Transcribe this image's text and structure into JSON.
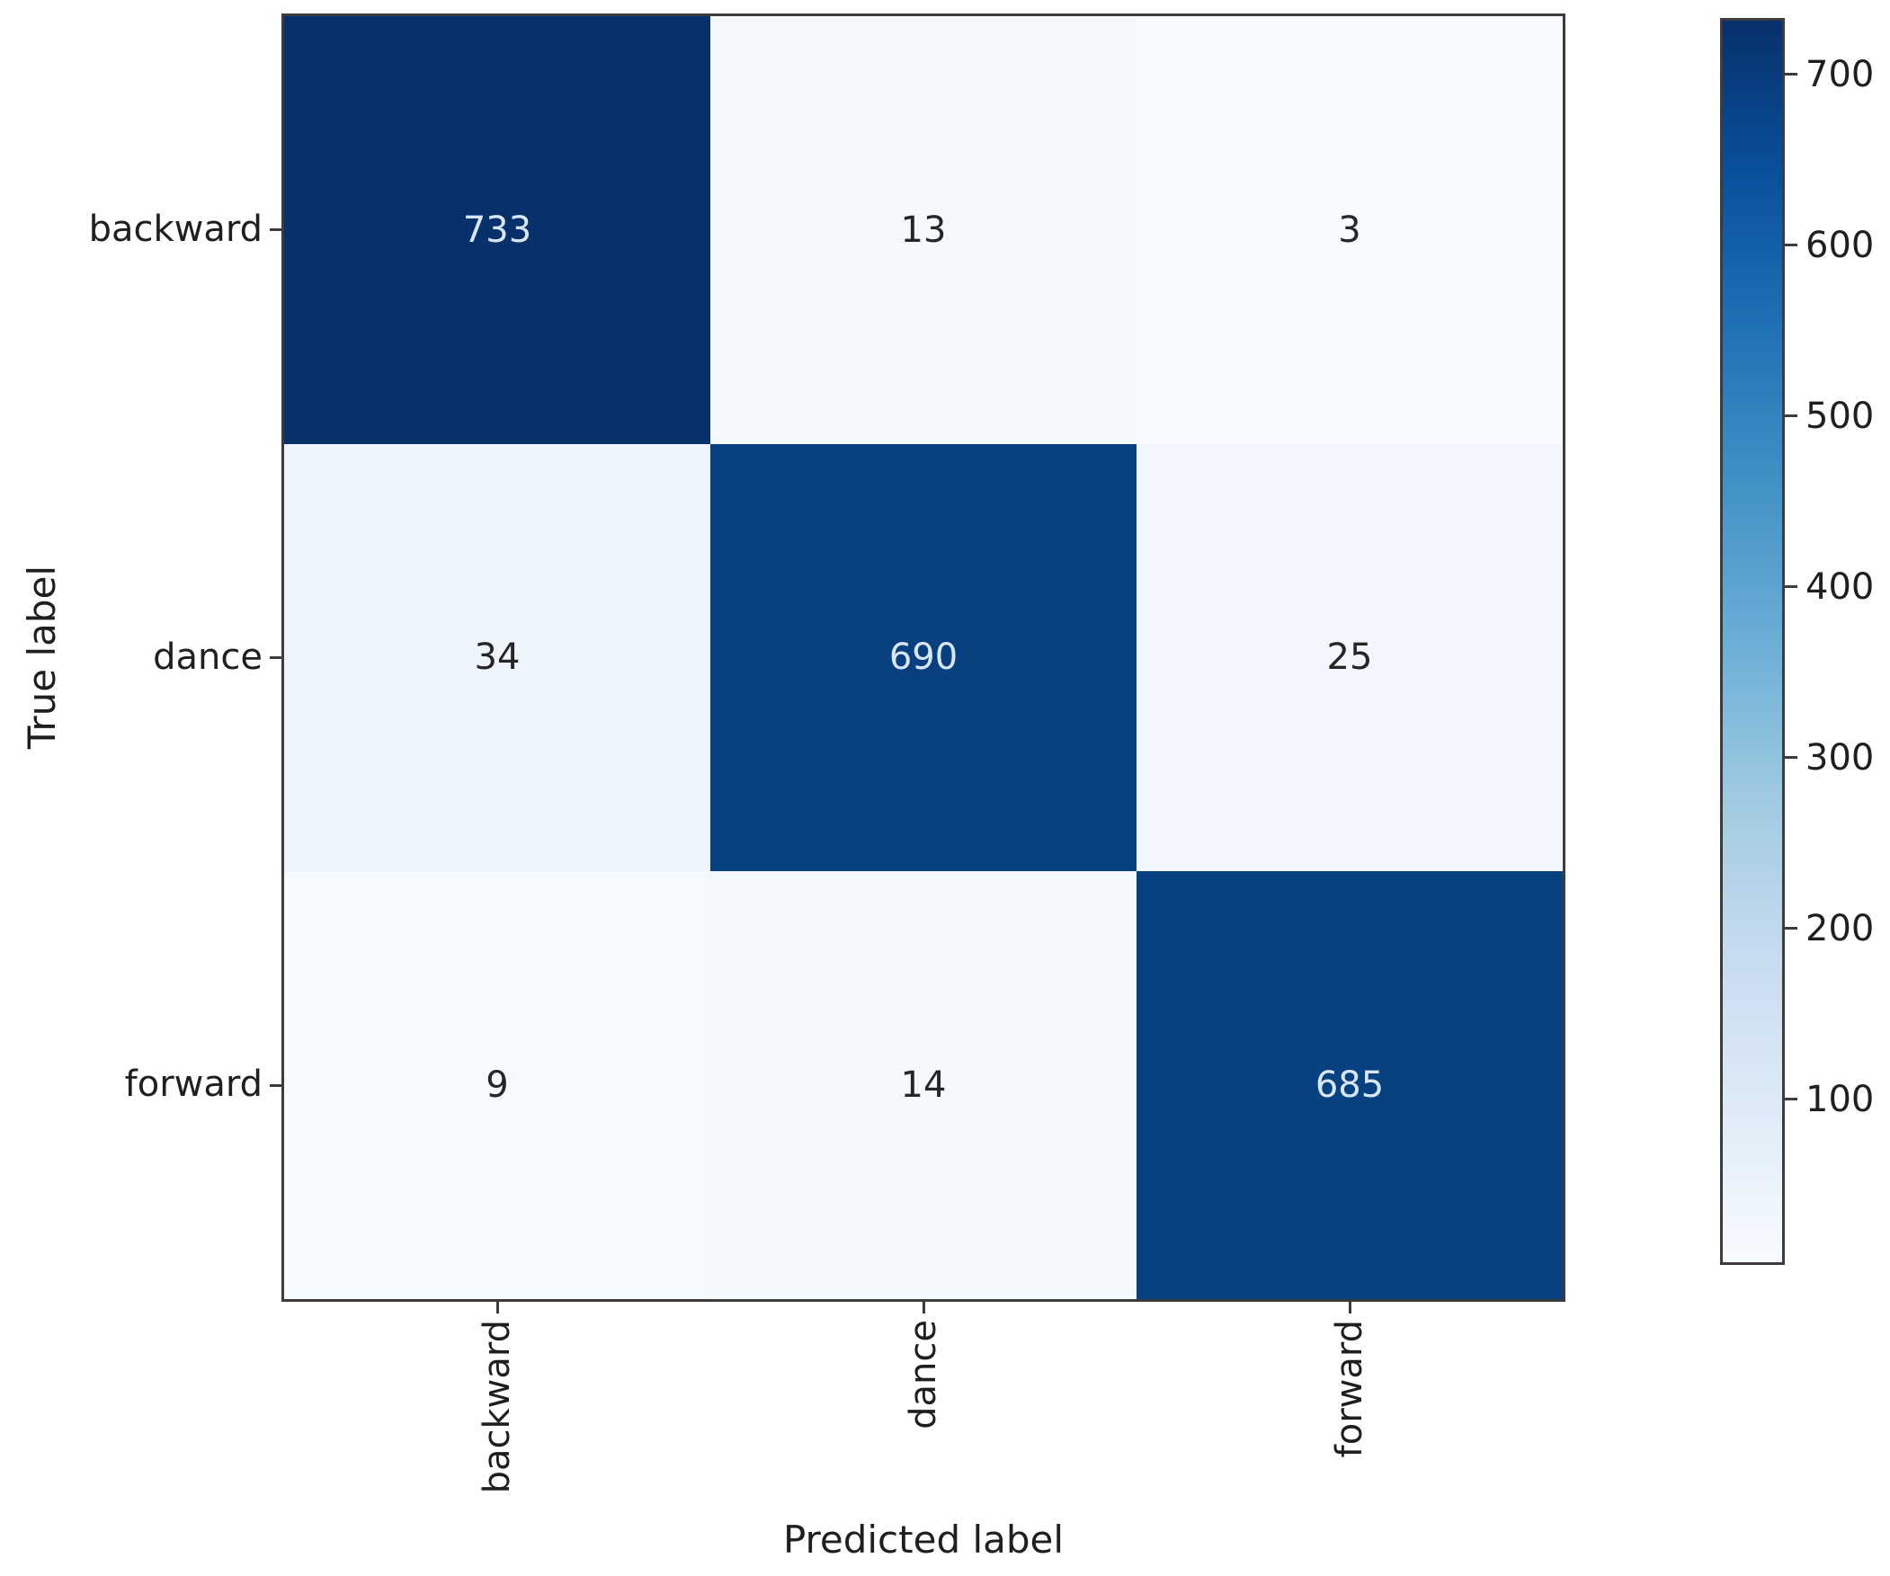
{
  "figure": {
    "background": "#ffffff"
  },
  "chart_data": {
    "type": "heatmap",
    "subtype": "confusion-matrix",
    "title": "",
    "xlabel": "Predicted label",
    "ylabel": "True label",
    "x_tick_labels": [
      "backward",
      "dance",
      "forward"
    ],
    "y_tick_labels": [
      "backward",
      "dance",
      "forward"
    ],
    "matrix": [
      [
        733,
        13,
        3
      ],
      [
        34,
        690,
        25
      ],
      [
        9,
        14,
        685
      ]
    ],
    "colormap": "Blues",
    "vmin": 3,
    "vmax": 733,
    "grid": false,
    "legend_position": "right-colorbar",
    "colorbar_ticks": [
      700,
      600,
      500,
      400,
      300,
      200,
      100
    ],
    "cell_colors": [
      [
        "#08306b",
        "#f4f9fe",
        "#f7fbff"
      ],
      [
        "#eef5fc",
        "#08407f",
        "#f1f7fd"
      ],
      [
        "#f5fafe",
        "#f4f9fe",
        "#084180"
      ]
    ],
    "cell_text_colors": [
      [
        "#d8e6f5",
        "#262626",
        "#262626"
      ],
      [
        "#262626",
        "#d8e6f5",
        "#262626"
      ],
      [
        "#262626",
        "#262626",
        "#d8e6f5"
      ]
    ],
    "colorbar_gradient_top_to_bottom": [
      {
        "color": "#08306b",
        "pos": 0
      },
      {
        "color": "#08519c",
        "pos": 12.5
      },
      {
        "color": "#2171b5",
        "pos": 25
      },
      {
        "color": "#4292c6",
        "pos": 37.5
      },
      {
        "color": "#6baed6",
        "pos": 50
      },
      {
        "color": "#9ecae1",
        "pos": 62.5
      },
      {
        "color": "#c6dbef",
        "pos": 75
      },
      {
        "color": "#deebf7",
        "pos": 87.5
      },
      {
        "color": "#f7fbff",
        "pos": 100
      }
    ],
    "colors": {
      "spine": "#3c3c3c",
      "tick": "#3c3c3c",
      "label_text": "#1f1f1f"
    }
  }
}
